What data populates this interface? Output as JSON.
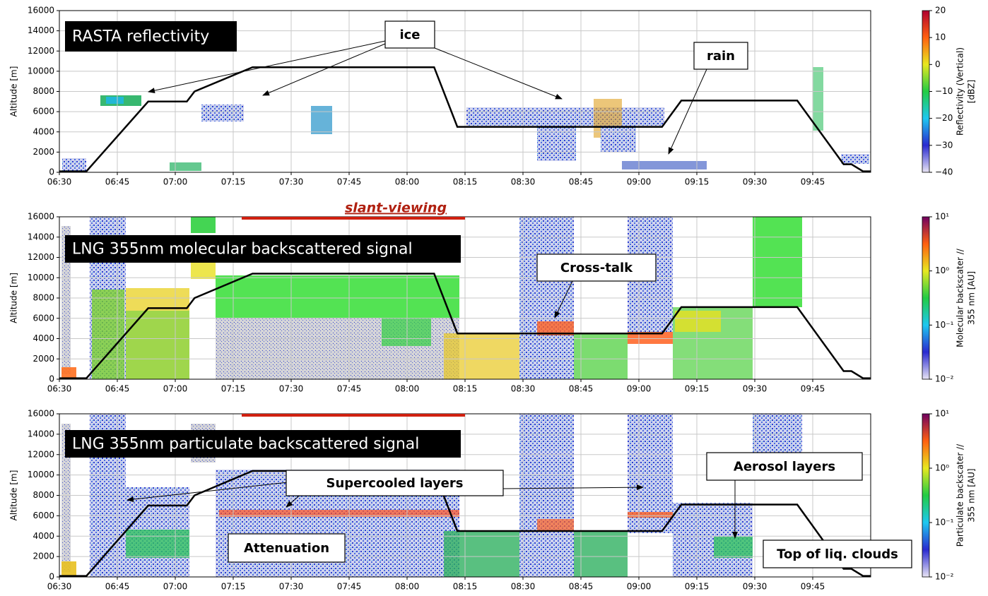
{
  "chart_data": [
    {
      "type": "line",
      "title": "RASTA reflectivity",
      "y_label": "Altitude [m]",
      "x": [
        "06:30",
        "06:37",
        "06:53",
        "07:03",
        "07:05",
        "07:20",
        "08:07",
        "08:13",
        "09:06",
        "09:11",
        "09:41",
        "09:53",
        "09:55",
        "09:58",
        "10:00"
      ],
      "values": [
        100,
        100,
        7000,
        7000,
        8000,
        10400,
        10400,
        4500,
        4500,
        7100,
        7100,
        800,
        800,
        100,
        100
      ],
      "color": "#000000",
      "xlim": [
        "06:30",
        "10:00"
      ],
      "xticks": [
        "06:30",
        "06:45",
        "07:00",
        "07:15",
        "07:30",
        "07:45",
        "08:00",
        "08:15",
        "08:30",
        "08:45",
        "09:00",
        "09:15",
        "09:30",
        "09:45"
      ],
      "ylim": [
        0,
        16000
      ],
      "yticks": [
        0,
        2000,
        4000,
        6000,
        8000,
        10000,
        12000,
        14000,
        16000
      ],
      "grid": true,
      "annotations": [
        "ice",
        "rain"
      ],
      "colorbar": {
        "label": [
          "Reflectivity (Vertical)",
          "[dBZ]"
        ],
        "lim": [
          -40,
          20
        ],
        "log": false,
        "ticks": [
          {
            "value": -40,
            "label": "−40"
          },
          {
            "value": -30,
            "label": "−30"
          },
          {
            "value": -20,
            "label": "−20"
          },
          {
            "value": -10,
            "label": "−10"
          },
          0,
          10,
          20
        ],
        "colors": [
          "#e8e4f4",
          "#2a2ad0",
          "#1ec8f0",
          "#22cc44",
          "#e8e820",
          "#ff6010",
          "#b00030"
        ]
      }
    },
    {
      "type": "line",
      "title": "LNG 355nm molecular backscattered signal",
      "y_label": "Altitude [m]",
      "x": [
        "06:30",
        "06:37",
        "06:53",
        "07:03",
        "07:05",
        "07:20",
        "08:07",
        "08:13",
        "09:06",
        "09:11",
        "09:41",
        "09:53",
        "09:55",
        "09:58",
        "10:00"
      ],
      "values": [
        100,
        100,
        7000,
        7000,
        8000,
        10400,
        10400,
        4500,
        4500,
        7100,
        7100,
        800,
        800,
        100,
        100
      ],
      "color": "#000000",
      "xlim": [
        "06:30",
        "10:00"
      ],
      "xticks": [
        "06:30",
        "06:45",
        "07:00",
        "07:15",
        "07:30",
        "07:45",
        "08:00",
        "08:15",
        "08:30",
        "08:45",
        "09:00",
        "09:15",
        "09:30",
        "09:45"
      ],
      "ylim": [
        0,
        16000
      ],
      "yticks": [
        0,
        2000,
        4000,
        6000,
        8000,
        10000,
        12000,
        14000,
        16000
      ],
      "grid": true,
      "annotations": [
        "slant-viewing",
        "Cross-talk"
      ],
      "colorbar": {
        "label": [
          "Molecular backscater //",
          "355 nm [AU]"
        ],
        "lim": [
          0.01,
          10
        ],
        "log": true,
        "ticks": [
          {
            "value": 0.01,
            "label": "10⁻²"
          },
          {
            "value": 0.1,
            "label": "10⁻¹"
          },
          {
            "value": 1,
            "label": "10⁰"
          },
          {
            "value": 10,
            "label": "10¹"
          }
        ],
        "colors": [
          "#e8e4f4",
          "#2a2ad0",
          "#1ec8f0",
          "#22cc44",
          "#e8e820",
          "#ff6010",
          "#700060"
        ]
      }
    },
    {
      "type": "line",
      "title": "LNG 355nm particulate backscattered signal",
      "y_label": "Altitude [m]",
      "x": [
        "06:30",
        "06:37",
        "06:53",
        "07:03",
        "07:05",
        "07:20",
        "08:07",
        "08:13",
        "09:06",
        "09:11",
        "09:41",
        "09:53",
        "09:55",
        "09:58",
        "10:00"
      ],
      "values": [
        100,
        100,
        7000,
        7000,
        8000,
        10400,
        10400,
        4500,
        4500,
        7100,
        7100,
        800,
        800,
        100,
        100
      ],
      "color": "#000000",
      "xlim": [
        "06:30",
        "10:00"
      ],
      "xticks": [
        "06:30",
        "06:45",
        "07:00",
        "07:15",
        "07:30",
        "07:45",
        "08:00",
        "08:15",
        "08:30",
        "08:45",
        "09:00",
        "09:15",
        "09:30",
        "09:45"
      ],
      "ylim": [
        0,
        16000
      ],
      "yticks": [
        0,
        2000,
        4000,
        6000,
        8000,
        10000,
        12000,
        14000,
        16000
      ],
      "grid": true,
      "annotations": [
        "Supercooled layers",
        "Aerosol layers",
        "Attenuation",
        "Top of liq. clouds"
      ],
      "colorbar": {
        "label": [
          "Particulate backscater //",
          "355 nm [AU]"
        ],
        "lim": [
          0.01,
          10
        ],
        "log": true,
        "ticks": [
          {
            "value": 0.01,
            "label": "10⁻²"
          },
          {
            "value": 0.1,
            "label": "10⁻¹"
          },
          {
            "value": 1,
            "label": "10⁰"
          },
          {
            "value": 10,
            "label": "10¹"
          }
        ],
        "colors": [
          "#e8e4f4",
          "#2a2ad0",
          "#1ec8f0",
          "#22cc44",
          "#e8e820",
          "#ff6010",
          "#700060"
        ]
      }
    }
  ]
}
